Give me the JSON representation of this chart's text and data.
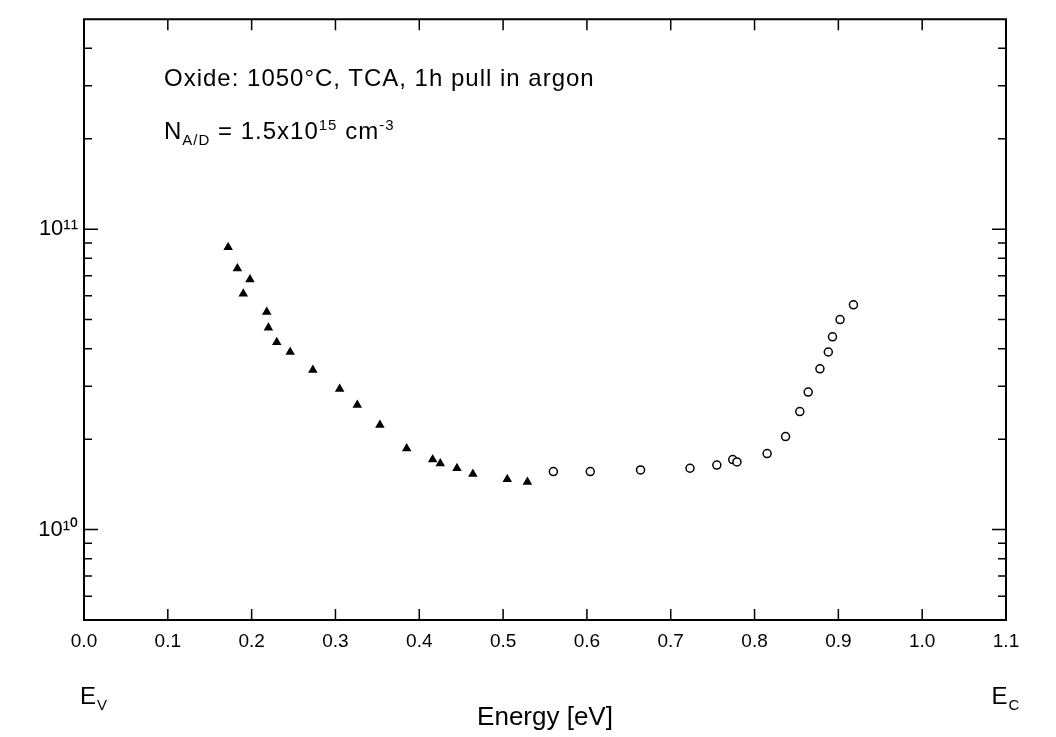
{
  "chart_data": {
    "type": "scatter",
    "xlabel": "Energy [eV]",
    "annotations": [
      "Oxide: 1050°C, TCA, 1h pull in argon",
      "N$_{A/D}$ = 1.5x10$^{15}$ cm$^{-3}$",
      "E$_{V}$",
      "E$_{C}$"
    ],
    "series": [
      {
        "color": "#000000",
        "marker": "triangle",
        "x": [
          0.172,
          0.183,
          0.19,
          0.198,
          0.218,
          0.22,
          0.23,
          0.246,
          0.273,
          0.305,
          0.326,
          0.353,
          0.385,
          0.416,
          0.425,
          0.445,
          0.464,
          0.505,
          0.529
        ],
        "values": [
          87000000000.0,
          74000000000.0,
          61000000000.0,
          68000000000.0,
          53000000000.0,
          47000000000.0,
          42000000000.0,
          39000000000.0,
          34000000000.0,
          29400000000.0,
          26000000000.0,
          22300000000.0,
          18600000000.0,
          17100000000.0,
          16600000000.0,
          16000000000.0,
          15300000000.0,
          14700000000.0,
          14400000000.0
        ]
      },
      {
        "color": "#000000",
        "marker": "circle",
        "x": [
          0.56,
          0.604,
          0.664,
          0.723,
          0.755,
          0.774,
          0.779,
          0.815,
          0.837,
          0.854,
          0.864,
          0.878,
          0.888,
          0.893,
          0.902,
          0.918
        ],
        "values": [
          15600000000.0,
          15600000000.0,
          15800000000.0,
          16000000000.0,
          16400000000.0,
          17100000000.0,
          16800000000.0,
          17900000000.0,
          20400000000.0,
          24700000000.0,
          28700000000.0,
          34300000000.0,
          39000000000.0,
          43800000000.0,
          50000000000.0,
          56000000000.0
        ]
      }
    ],
    "xlim": [
      0,
      1.1
    ],
    "xticks": [
      {
        "value": 0,
        "label": "0.0"
      },
      0.1,
      0.2,
      0.3,
      0.4,
      0.5,
      0.6,
      0.7,
      0.8,
      0.9,
      {
        "value": 1,
        "label": "1.0"
      },
      1.1
    ],
    "log": "y",
    "ylim": [
      5000000000.0,
      500000000000.0
    ],
    "yticks": [
      {
        "value": 6000000000.0,
        "label": null
      },
      {
        "value": 7000000000.0,
        "label": null
      },
      {
        "value": 8000000000.0,
        "label": null
      },
      {
        "value": 9000000000.0,
        "label": null
      },
      {
        "value": 10000000000.0,
        "label": "10¹⁰"
      },
      {
        "value": 20000000000.0,
        "label": null
      },
      {
        "value": 30000000000.0,
        "label": null
      },
      {
        "value": 40000000000.0,
        "label": null
      },
      {
        "value": 50000000000.0,
        "label": null
      },
      {
        "value": 60000000000.0,
        "label": null
      },
      {
        "value": 70000000000.0,
        "label": null
      },
      {
        "value": 80000000000.0,
        "label": null
      },
      {
        "value": 90000000000.0,
        "label": null
      },
      {
        "value": 100000000000.0,
        "label": "10¹¹"
      },
      {
        "value": 200000000000.0,
        "label": null
      },
      {
        "value": 300000000000.0,
        "label": null
      },
      {
        "value": 400000000000.0,
        "label": null
      }
    ],
    "grid": false,
    "legend": false
  }
}
